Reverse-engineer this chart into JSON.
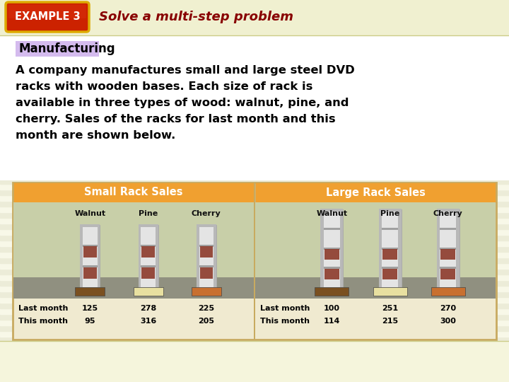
{
  "bg_color": "#f5f5dc",
  "stripe_light": "#f8f8e8",
  "stripe_dark": "#ececd8",
  "header_bg": "#f0f0d0",
  "example_label": "EXAMPLE 3",
  "example_label_bg_dark": "#aa1100",
  "example_label_bg_mid": "#cc2200",
  "example_label_color": "#ffffff",
  "example_border_color": "#ddaa00",
  "header_title": "Solve a multi-step problem",
  "header_title_color": "#880000",
  "manufacturing_label": "Manufacturing",
  "manufacturing_bg": "#d4bbee",
  "body_bg": "#ffffff",
  "body_text_lines": [
    "A company manufactures small and large steel DVD",
    "racks with wooden bases. Each size of rack is",
    "available in three types of wood: walnut, pine, and",
    "cherry. Sales of the racks for last month and this",
    "month are shown below."
  ],
  "body_text_color": "#000000",
  "table_border_color": "#c8aa60",
  "small_rack_header_bg": "#f0a030",
  "large_rack_header_bg": "#f0a030",
  "small_rack_title": "Small Rack Sales",
  "large_rack_title": "Large Rack Sales",
  "wood_types": [
    "Walnut",
    "Pine",
    "Cherry"
  ],
  "small_rack_last_month": [
    125,
    278,
    225
  ],
  "small_rack_this_month": [
    95,
    316,
    205
  ],
  "large_rack_last_month": [
    100,
    251,
    270
  ],
  "large_rack_this_month": [
    114,
    215,
    300
  ],
  "table_inner_bg_top": "#c8cfa8",
  "table_inner_bg_bottom": "#9a9a8a",
  "table_floor_color": "#909080",
  "base_colors": [
    "#7a5020",
    "#e8e0a0",
    "#c87030"
  ],
  "rack_frame_color": "#d8d8d8",
  "rack_bar_color": "#b8b8b8",
  "rack_shelf_color": "#a0a0a0",
  "book_color": "#883020",
  "table_data_bg": "#f0ead0"
}
